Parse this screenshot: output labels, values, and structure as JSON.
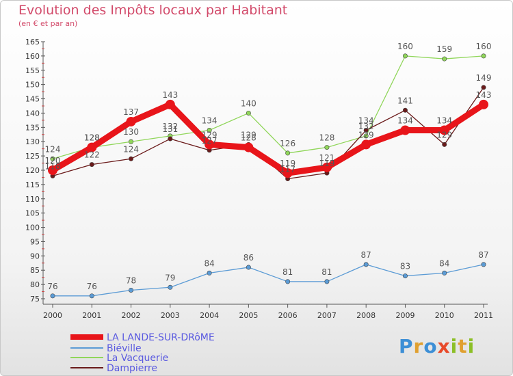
{
  "header": {
    "title": "Evolution des Impôts locaux par Habitant",
    "subtitle": "(en € et par an)"
  },
  "logo": {
    "text": "Proxiti",
    "letters": [
      "P",
      "r",
      "o",
      "x",
      "i",
      "t",
      "i"
    ],
    "colors": [
      "#3d8fd6",
      "#e0a030",
      "#3d8fd6",
      "#e84a2a",
      "#8cbf26",
      "#e0a030",
      "#8cbf26"
    ]
  },
  "chart_data": {
    "type": "line",
    "title": "Evolution des Impôts locaux par Habitant",
    "subtitle": "(en € et par an)",
    "x": [
      "2000",
      "2001",
      "2002",
      "2003",
      "2004",
      "2005",
      "2006",
      "2007",
      "2008",
      "2009",
      "2010",
      "2011"
    ],
    "ylim": [
      75,
      165
    ],
    "yticks": [
      75,
      80,
      85,
      90,
      95,
      100,
      105,
      110,
      115,
      120,
      125,
      130,
      135,
      140,
      145,
      150,
      155,
      160,
      165
    ],
    "grid": false,
    "legend_position": "bottom-left",
    "series": [
      {
        "name": "LA LANDE-SUR-DRôME",
        "color": "#e8151a",
        "values": [
          120,
          128,
          137,
          143,
          129,
          128,
          119,
          121,
          129,
          134,
          134,
          143
        ],
        "labels": [
          "120",
          "128",
          "137",
          "143",
          "129",
          "128",
          "119",
          "121",
          "129",
          "134",
          "134",
          "143"
        ]
      },
      {
        "name": "Biéville",
        "color": "#5b9bd5",
        "values": [
          76,
          76,
          78,
          79,
          84,
          86,
          81,
          81,
          87,
          83,
          84,
          87
        ],
        "labels": [
          "76",
          "76",
          "78",
          "79",
          "84",
          "86",
          "81",
          "81",
          "87",
          "83",
          "84",
          "87"
        ]
      },
      {
        "name": "La Vacquerie",
        "color": "#90d65a",
        "values": [
          124,
          128,
          130,
          132,
          134,
          140,
          126,
          128,
          132,
          160,
          159,
          160
        ],
        "labels": [
          "124",
          "128",
          "130",
          "132",
          "134",
          "140",
          "126",
          "128",
          "132",
          "160",
          "159",
          "160"
        ]
      },
      {
        "name": "Dampierre",
        "color": "#6a1a1a",
        "values": [
          118,
          122,
          124,
          131,
          127,
          129,
          117,
          119,
          134,
          141,
          129,
          149
        ],
        "labels": [
          "118",
          "122",
          "124",
          "131",
          "127",
          "129",
          "117",
          "119",
          "134",
          "141",
          "129",
          "149"
        ]
      }
    ]
  }
}
